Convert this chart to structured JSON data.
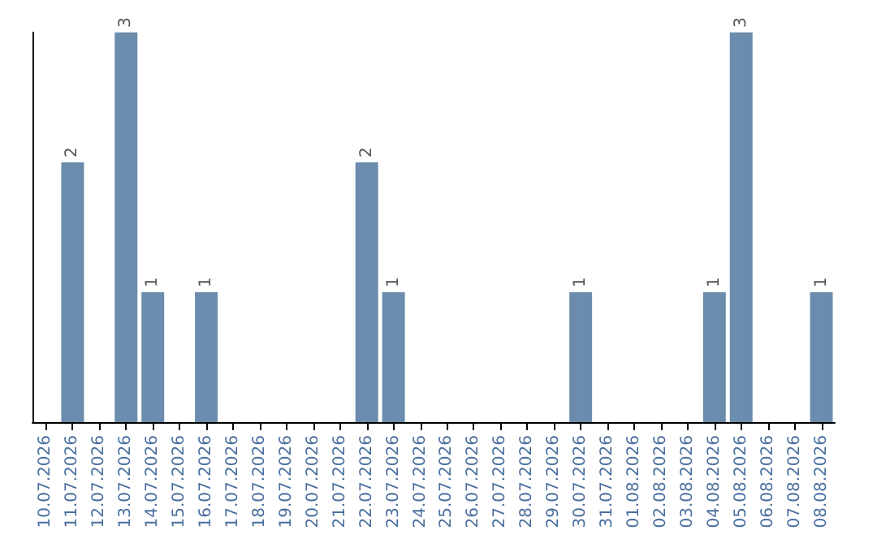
{
  "chart_data": {
    "type": "bar",
    "categories": [
      "10.07.2026",
      "11.07.2026",
      "12.07.2026",
      "13.07.2026",
      "14.07.2026",
      "15.07.2026",
      "16.07.2026",
      "17.07.2026",
      "18.07.2026",
      "19.07.2026",
      "20.07.2026",
      "21.07.2026",
      "22.07.2026",
      "23.07.2026",
      "24.07.2026",
      "25.07.2026",
      "26.07.2026",
      "27.07.2026",
      "28.07.2026",
      "29.07.2026",
      "30.07.2026",
      "31.07.2026",
      "01.08.2026",
      "02.08.2026",
      "03.08.2026",
      "04.08.2026",
      "05.08.2026",
      "06.08.2026",
      "07.08.2026",
      "08.08.2026"
    ],
    "values": [
      0,
      2,
      0,
      3,
      1,
      0,
      1,
      0,
      0,
      0,
      0,
      0,
      2,
      1,
      0,
      0,
      0,
      0,
      0,
      0,
      1,
      0,
      0,
      0,
      0,
      1,
      3,
      0,
      0,
      1
    ],
    "value_labels": [
      null,
      "2",
      null,
      "3",
      "1",
      null,
      "1",
      null,
      null,
      null,
      null,
      null,
      "2",
      "1",
      null,
      null,
      null,
      null,
      null,
      null,
      "1",
      null,
      null,
      null,
      null,
      "1",
      "3",
      null,
      null,
      "1"
    ],
    "color": "#6b8cad",
    "tick_labels": "x",
    "grid": false
  }
}
